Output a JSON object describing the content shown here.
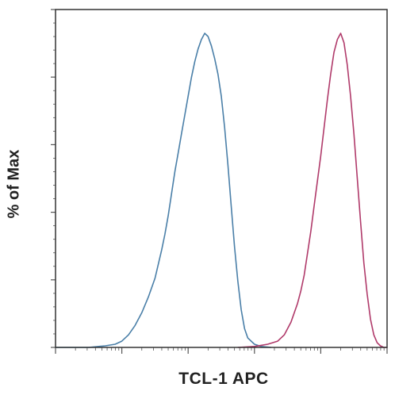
{
  "chart_data": {
    "type": "line",
    "title": "",
    "xlabel": "TCL-1 APC",
    "ylabel": "% of Max",
    "xlim": [
      0,
      100
    ],
    "ylim": [
      0,
      100
    ],
    "grid": false,
    "series": [
      {
        "color": "#4a7fa8",
        "x": [
          0,
          5,
          10,
          15,
          18,
          20,
          22,
          24,
          26,
          28,
          30,
          32,
          33,
          34,
          35,
          36,
          37,
          38,
          39,
          40,
          41,
          42,
          43,
          44,
          45,
          46,
          47,
          48,
          49,
          50,
          51,
          52,
          53,
          54,
          55,
          56,
          57,
          58,
          60,
          62,
          65
        ],
        "y": [
          0,
          0,
          0,
          0.5,
          1,
          2,
          4,
          7,
          11,
          16,
          22,
          31,
          36,
          42,
          49,
          56,
          62,
          68,
          74,
          80,
          86,
          91,
          95,
          98,
          100,
          99,
          96,
          92,
          87,
          80,
          70,
          58,
          45,
          32,
          21,
          12,
          6,
          3,
          1,
          0.3,
          0
        ]
      },
      {
        "color": "#b03a6a",
        "x": [
          55,
          60,
          64,
          67,
          69,
          71,
          73,
          74,
          75,
          76,
          77,
          78,
          79,
          80,
          81,
          82,
          83,
          84,
          85,
          86,
          87,
          88,
          89,
          90,
          91,
          92,
          93,
          94,
          95,
          96,
          97,
          98,
          99,
          100
        ],
        "y": [
          0,
          0.3,
          1,
          2,
          4,
          8,
          14,
          18,
          23,
          30,
          37,
          45,
          53,
          61,
          70,
          79,
          87,
          94,
          98,
          100,
          97,
          90,
          80,
          68,
          54,
          40,
          27,
          17,
          9,
          4,
          1.5,
          0.5,
          0,
          0
        ]
      }
    ]
  }
}
